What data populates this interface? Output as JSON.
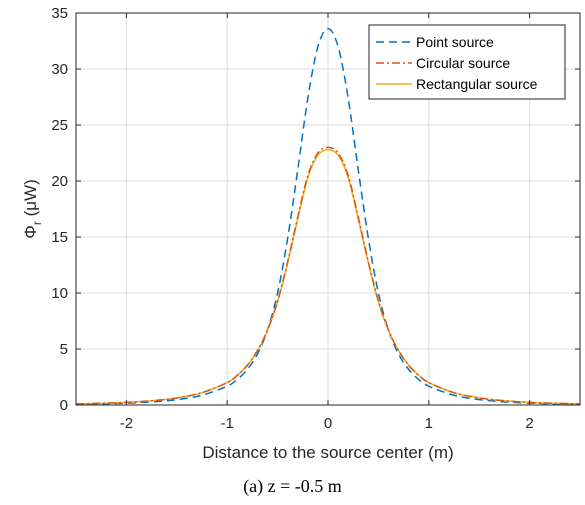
{
  "chart_data": {
    "type": "line",
    "xlabel": "Distance to the source center (m)",
    "ylabel_symbol": "Φ",
    "ylabel_sub": "r",
    "ylabel_unit": " (μW)",
    "xlim": [
      -2.5,
      2.5
    ],
    "ylim": [
      0,
      35
    ],
    "xticks": [
      -2,
      -1,
      0,
      1,
      2
    ],
    "yticks": [
      0,
      5,
      10,
      15,
      20,
      25,
      30,
      35
    ],
    "grid": true,
    "legend_position": "top-right",
    "x": [
      -2.5,
      -2.25,
      -2.0,
      -1.75,
      -1.5,
      -1.25,
      -1.0,
      -0.9,
      -0.8,
      -0.7,
      -0.6,
      -0.5,
      -0.4,
      -0.3,
      -0.2,
      -0.1,
      0.0,
      0.1,
      0.2,
      0.3,
      0.4,
      0.5,
      0.6,
      0.7,
      0.8,
      0.9,
      1.0,
      1.25,
      1.5,
      1.75,
      2.0,
      2.25,
      2.5
    ],
    "series": [
      {
        "name": "Point source",
        "color": "#0072BD",
        "style": "dashed",
        "values": [
          0.07,
          0.11,
          0.17,
          0.28,
          0.48,
          0.87,
          1.68,
          2.28,
          3.18,
          4.55,
          6.7,
          10.0,
          14.9,
          21.0,
          27.4,
          32.0,
          33.6,
          32.0,
          27.4,
          21.0,
          14.9,
          10.0,
          6.7,
          4.55,
          3.18,
          2.28,
          1.68,
          0.87,
          0.48,
          0.28,
          0.17,
          0.11,
          0.07
        ]
      },
      {
        "name": "Circular source",
        "color": "#D95319",
        "style": "dashdot",
        "values": [
          0.1,
          0.15,
          0.23,
          0.38,
          0.63,
          1.1,
          2.0,
          2.65,
          3.55,
          4.85,
          6.7,
          9.3,
          12.8,
          16.8,
          20.5,
          22.5,
          23.0,
          22.5,
          20.5,
          16.8,
          12.8,
          9.3,
          6.7,
          4.85,
          3.55,
          2.65,
          2.0,
          1.1,
          0.63,
          0.38,
          0.23,
          0.15,
          0.1
        ]
      },
      {
        "name": "Rectangular source",
        "color": "#EDB120",
        "style": "solid",
        "values": [
          0.1,
          0.15,
          0.23,
          0.38,
          0.63,
          1.1,
          2.0,
          2.65,
          3.55,
          4.85,
          6.65,
          9.2,
          12.7,
          16.6,
          20.3,
          22.3,
          22.8,
          22.3,
          20.3,
          16.6,
          12.7,
          9.2,
          6.65,
          4.85,
          3.55,
          2.65,
          2.0,
          1.1,
          0.63,
          0.38,
          0.23,
          0.15,
          0.1
        ]
      }
    ]
  },
  "caption": "(a) z = -0.5 m"
}
